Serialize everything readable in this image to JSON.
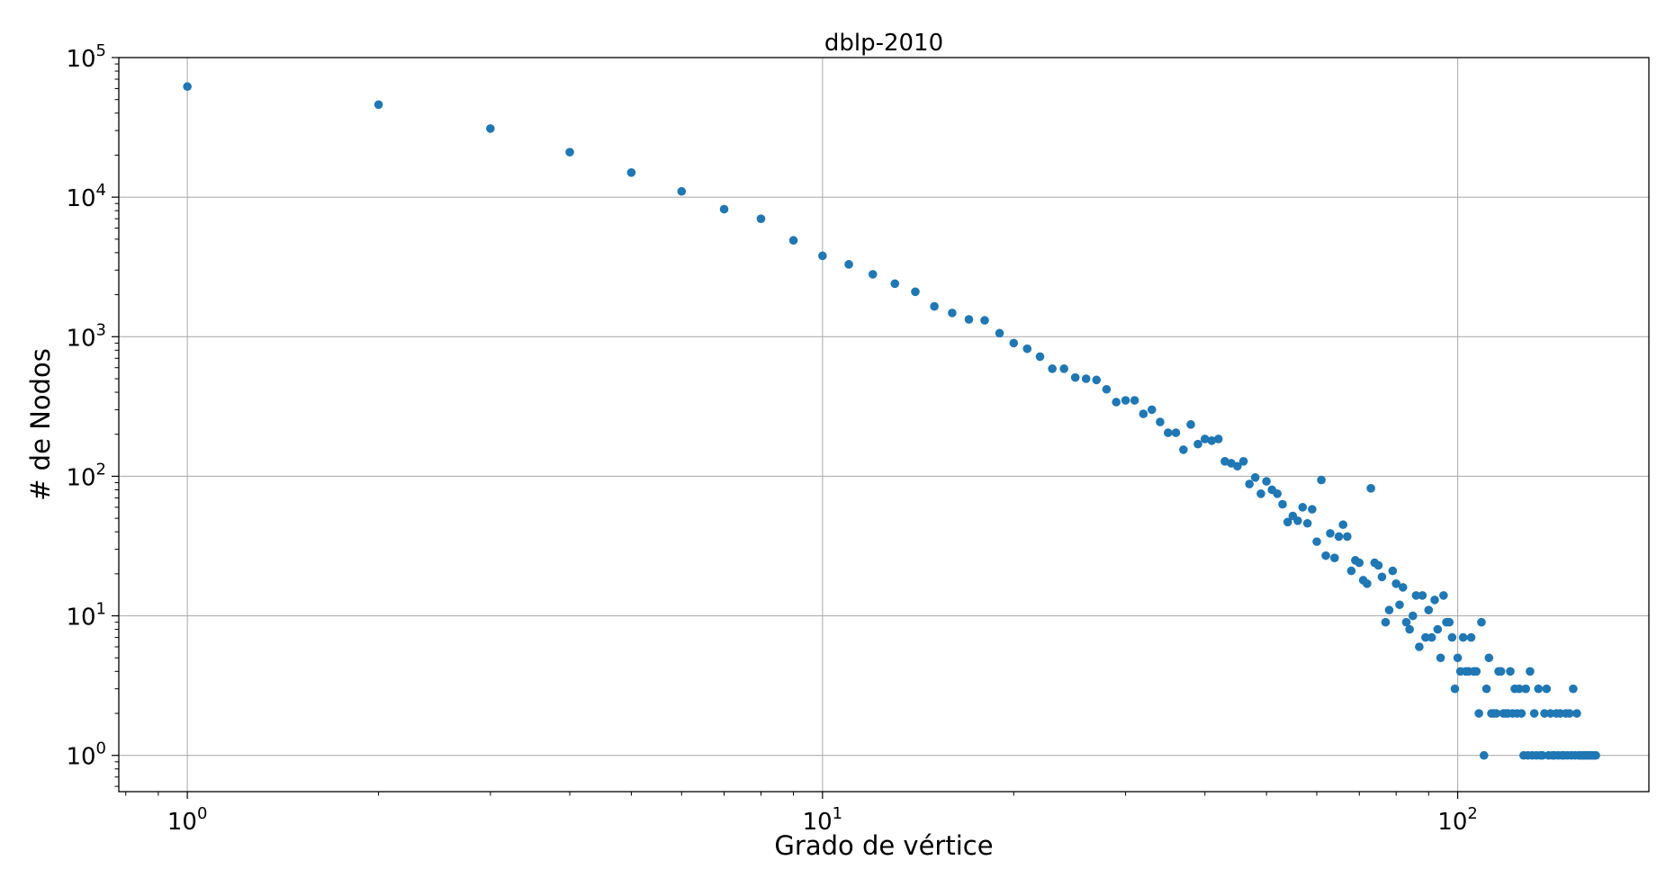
{
  "chart_data": {
    "type": "scatter",
    "title": "dblp-2010",
    "xlabel": "Grado de vértice",
    "ylabel": "# de Nodos",
    "xscale": "log",
    "yscale": "log",
    "xlim": [
      0.78,
      200
    ],
    "ylim": [
      0.55,
      100000
    ],
    "grid": true,
    "marker_color": "#1f77b4",
    "x_ticks": [
      {
        "base": "10",
        "exp": "0",
        "value": 1
      },
      {
        "base": "10",
        "exp": "1",
        "value": 10
      },
      {
        "base": "10",
        "exp": "2",
        "value": 100
      }
    ],
    "y_ticks": [
      {
        "base": "10",
        "exp": "0",
        "value": 1
      },
      {
        "base": "10",
        "exp": "1",
        "value": 10
      },
      {
        "base": "10",
        "exp": "2",
        "value": 100
      },
      {
        "base": "10",
        "exp": "3",
        "value": 1000
      },
      {
        "base": "10",
        "exp": "4",
        "value": 10000
      },
      {
        "base": "10",
        "exp": "5",
        "value": 100000
      }
    ],
    "points": [
      [
        1,
        62000
      ],
      [
        2,
        46000
      ],
      [
        3,
        31000
      ],
      [
        4,
        21000
      ],
      [
        5,
        15000
      ],
      [
        6,
        11000
      ],
      [
        7,
        8200
      ],
      [
        8,
        7000
      ],
      [
        9,
        4900
      ],
      [
        10,
        3800
      ],
      [
        11,
        3300
      ],
      [
        12,
        2800
      ],
      [
        13,
        2400
      ],
      [
        14,
        2100
      ],
      [
        15,
        1650
      ],
      [
        16,
        1480
      ],
      [
        17,
        1330
      ],
      [
        18,
        1310
      ],
      [
        19,
        1060
      ],
      [
        20,
        900
      ],
      [
        21,
        820
      ],
      [
        22,
        720
      ],
      [
        23,
        590
      ],
      [
        24,
        590
      ],
      [
        25,
        510
      ],
      [
        26,
        500
      ],
      [
        27,
        490
      ],
      [
        28,
        420
      ],
      [
        29,
        340
      ],
      [
        30,
        350
      ],
      [
        31,
        350
      ],
      [
        32,
        280
      ],
      [
        33,
        300
      ],
      [
        34,
        245
      ],
      [
        35,
        205
      ],
      [
        36,
        205
      ],
      [
        37,
        155
      ],
      [
        38,
        235
      ],
      [
        39,
        170
      ],
      [
        40,
        185
      ],
      [
        41,
        180
      ],
      [
        42,
        185
      ],
      [
        43,
        128
      ],
      [
        44,
        124
      ],
      [
        45,
        118
      ],
      [
        46,
        128
      ],
      [
        47,
        88
      ],
      [
        48,
        98
      ],
      [
        49,
        75
      ],
      [
        50,
        92
      ],
      [
        51,
        80
      ],
      [
        52,
        75
      ],
      [
        53,
        63
      ],
      [
        54,
        47
      ],
      [
        55,
        52
      ],
      [
        56,
        48
      ],
      [
        57,
        60
      ],
      [
        58,
        46
      ],
      [
        59,
        58
      ],
      [
        60,
        34
      ],
      [
        61,
        94
      ],
      [
        62,
        27
      ],
      [
        63,
        39
      ],
      [
        64,
        26
      ],
      [
        65,
        37
      ],
      [
        66,
        45
      ],
      [
        67,
        37
      ],
      [
        68,
        21
      ],
      [
        69,
        25
      ],
      [
        70,
        24
      ],
      [
        71,
        18
      ],
      [
        72,
        17
      ],
      [
        73,
        82
      ],
      [
        74,
        24
      ],
      [
        75,
        23
      ],
      [
        76,
        19
      ],
      [
        77,
        9
      ],
      [
        78,
        11
      ],
      [
        79,
        21
      ],
      [
        80,
        17
      ],
      [
        81,
        12
      ],
      [
        82,
        16
      ],
      [
        83,
        9
      ],
      [
        84,
        8
      ],
      [
        85,
        10
      ],
      [
        86,
        14
      ],
      [
        87,
        6
      ],
      [
        88,
        14
      ],
      [
        89,
        7
      ],
      [
        90,
        11
      ],
      [
        91,
        7
      ],
      [
        92,
        13
      ],
      [
        93,
        8
      ],
      [
        94,
        5
      ],
      [
        95,
        14
      ],
      [
        96,
        9
      ],
      [
        97,
        9
      ],
      [
        98,
        7
      ],
      [
        99,
        3
      ],
      [
        100,
        5
      ],
      [
        101,
        4
      ],
      [
        102,
        7
      ],
      [
        103,
        4
      ],
      [
        104,
        4
      ],
      [
        105,
        7
      ],
      [
        106,
        4
      ],
      [
        107,
        4
      ],
      [
        108,
        2
      ],
      [
        109,
        9
      ],
      [
        110,
        1
      ],
      [
        111,
        3
      ],
      [
        112,
        5
      ],
      [
        113,
        2
      ],
      [
        114,
        2
      ],
      [
        115,
        2
      ],
      [
        116,
        4
      ],
      [
        117,
        4
      ],
      [
        118,
        2
      ],
      [
        119,
        2
      ],
      [
        120,
        2
      ],
      [
        121,
        4
      ],
      [
        122,
        2
      ],
      [
        123,
        3
      ],
      [
        124,
        2
      ],
      [
        125,
        3
      ],
      [
        126,
        2
      ],
      [
        127,
        1
      ],
      [
        128,
        3
      ],
      [
        129,
        1
      ],
      [
        130,
        4
      ],
      [
        131,
        1
      ],
      [
        132,
        2
      ],
      [
        133,
        1
      ],
      [
        134,
        3
      ],
      [
        135,
        1
      ],
      [
        136,
        1
      ],
      [
        137,
        2
      ],
      [
        138,
        3
      ],
      [
        139,
        1
      ],
      [
        140,
        2
      ],
      [
        141,
        1
      ],
      [
        142,
        1
      ],
      [
        143,
        2
      ],
      [
        144,
        1
      ],
      [
        145,
        2
      ],
      [
        146,
        1
      ],
      [
        147,
        1
      ],
      [
        148,
        2
      ],
      [
        149,
        1
      ],
      [
        150,
        2
      ],
      [
        151,
        1
      ],
      [
        152,
        3
      ],
      [
        153,
        1
      ],
      [
        154,
        2
      ],
      [
        155,
        1
      ],
      [
        156,
        1
      ],
      [
        157,
        1
      ],
      [
        158,
        1
      ],
      [
        159,
        1
      ],
      [
        160,
        1
      ],
      [
        161,
        1
      ],
      [
        162,
        1
      ],
      [
        163,
        1
      ],
      [
        164,
        1
      ],
      [
        165,
        1
      ]
    ]
  }
}
